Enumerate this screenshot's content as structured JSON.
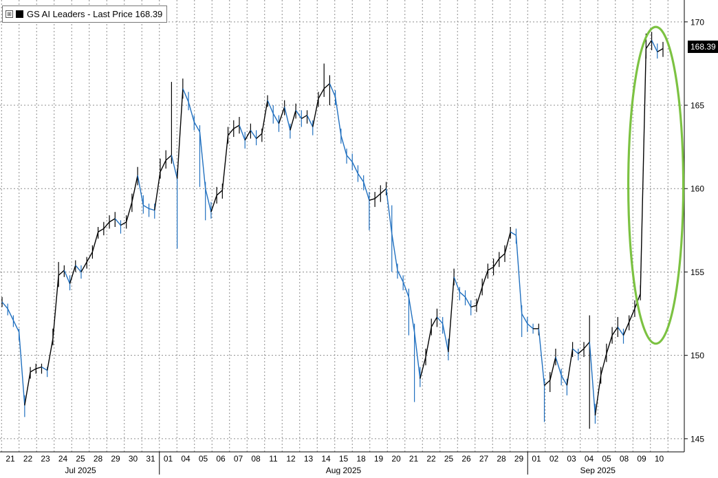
{
  "legend": {
    "label": "GS AI Leaders - Last Price 168.39",
    "toggle": "⊞"
  },
  "last_price_tag": "168.39",
  "colors": {
    "up": "#000000",
    "down": "#1f6fbf",
    "highlight": "#7cc242",
    "grid": "#8c8c8c"
  },
  "chart_data": {
    "type": "line",
    "y_ticks": [
      145,
      150,
      155,
      160,
      165,
      170
    ],
    "ylim": [
      144.5,
      170.9
    ],
    "x_day_labels": [
      "21",
      "22",
      "23",
      "24",
      "25",
      "28",
      "29",
      "30",
      "31",
      "01",
      "04",
      "05",
      "06",
      "07",
      "08",
      "11",
      "12",
      "13",
      "14",
      "15",
      "18",
      "19",
      "20",
      "21",
      "22",
      "25",
      "26",
      "27",
      "28",
      "29",
      "01",
      "02",
      "03",
      "04",
      "05",
      "08",
      "09",
      "10"
    ],
    "month_labels": [
      {
        "label": "Jul 2025",
        "start_index": 0,
        "end_index": 8
      },
      {
        "label": "Aug 2025",
        "start_index": 9,
        "end_index": 29
      },
      {
        "label": "Sep 2025",
        "start_index": 30,
        "end_index": 37
      }
    ],
    "series": [
      {
        "name": "GS AI Leaders",
        "values": [
          153.2,
          152.8,
          152.1,
          151.4,
          147.0,
          149.0,
          149.2,
          149.3,
          149.1,
          151.0,
          154.8,
          155.1,
          154.3,
          155.4,
          155.0,
          155.6,
          156.2,
          157.4,
          157.6,
          158.0,
          158.2,
          157.8,
          158.0,
          159.2,
          160.8,
          159.0,
          158.8,
          158.7,
          161.0,
          161.7,
          162.0,
          160.6,
          166.0,
          165.2,
          164.0,
          163.4,
          160.0,
          158.6,
          159.6,
          159.9,
          163.2,
          163.6,
          163.8,
          162.9,
          163.5,
          163.0,
          163.3,
          165.3,
          164.5,
          163.9,
          164.9,
          163.5,
          164.7,
          164.2,
          164.4,
          163.7,
          165.4,
          166.0,
          166.3,
          165.5,
          163.2,
          162.0,
          161.6,
          160.9,
          160.4,
          159.3,
          159.4,
          159.7,
          160.0,
          157.3,
          155.1,
          154.4,
          153.5,
          151.4,
          148.6,
          149.9,
          151.7,
          152.3,
          151.9,
          150.2,
          154.7,
          153.8,
          153.5,
          152.9,
          153.0,
          154.1,
          155.1,
          155.3,
          155.8,
          156.1,
          157.4,
          157.2,
          152.5,
          151.9,
          151.6,
          151.6,
          148.2,
          148.5,
          149.9,
          148.8,
          148.2,
          150.4,
          150.1,
          150.4,
          150.8,
          146.4,
          148.8,
          150.1,
          151.2,
          151.7,
          151.2,
          152.0,
          152.8,
          153.7,
          168.4,
          168.9,
          168.2,
          168.4
        ],
        "highs": [
          153.5,
          153.1,
          152.4,
          151.6,
          147.6,
          149.3,
          149.5,
          149.5,
          149.3,
          151.6,
          155.6,
          155.4,
          154.8,
          155.7,
          155.4,
          155.9,
          156.6,
          157.7,
          158.0,
          158.4,
          158.6,
          158.1,
          158.4,
          159.7,
          161.3,
          159.6,
          159.1,
          159.1,
          161.8,
          162.3,
          166.4,
          161.1,
          166.6,
          165.8,
          164.4,
          163.8,
          160.4,
          159.2,
          160.1,
          160.3,
          163.7,
          164.1,
          164.3,
          163.4,
          163.9,
          163.5,
          163.6,
          165.6,
          165.0,
          164.4,
          165.3,
          163.9,
          165.1,
          164.7,
          164.7,
          164.1,
          165.8,
          167.5,
          166.8,
          165.9,
          163.6,
          162.4,
          162.1,
          161.4,
          160.8,
          159.8,
          159.8,
          160.2,
          160.4,
          159.0,
          155.5,
          154.8,
          154.0,
          151.9,
          149.3,
          150.4,
          152.2,
          152.8,
          152.3,
          151.0,
          155.2,
          154.1,
          153.9,
          153.3,
          153.4,
          154.6,
          155.5,
          155.8,
          156.2,
          156.6,
          157.7,
          157.6,
          153.0,
          152.3,
          151.9,
          151.9,
          148.6,
          149.0,
          150.4,
          149.2,
          148.6,
          150.8,
          150.4,
          150.8,
          152.4,
          147.1,
          149.3,
          150.7,
          151.7,
          152.3,
          151.6,
          152.4,
          153.3,
          154.2,
          169.3,
          169.4,
          168.7,
          168.8
        ],
        "lows": [
          152.9,
          152.4,
          151.7,
          150.9,
          146.3,
          148.6,
          148.9,
          148.9,
          148.7,
          150.6,
          154.1,
          154.7,
          153.9,
          155.0,
          154.6,
          155.2,
          155.8,
          157.0,
          157.2,
          157.6,
          157.7,
          157.3,
          157.6,
          158.6,
          160.2,
          158.5,
          158.3,
          158.2,
          160.6,
          161.2,
          161.5,
          156.4,
          165.4,
          164.7,
          163.5,
          160.1,
          158.1,
          158.2,
          159.1,
          159.4,
          162.7,
          163.1,
          163.3,
          162.4,
          163.0,
          162.6,
          162.8,
          164.9,
          163.9,
          163.4,
          164.4,
          163.0,
          164.2,
          163.7,
          163.9,
          163.2,
          164.9,
          165.5,
          165.0,
          165.0,
          162.7,
          161.5,
          161.1,
          160.4,
          159.9,
          157.5,
          158.9,
          159.2,
          159.6,
          155.0,
          154.6,
          153.9,
          151.2,
          147.2,
          148.1,
          149.4,
          151.2,
          151.7,
          151.3,
          149.7,
          154.2,
          153.3,
          153.0,
          152.4,
          152.6,
          153.6,
          154.6,
          154.8,
          155.3,
          155.6,
          157.0,
          156.7,
          151.1,
          151.4,
          151.3,
          151.2,
          146.0,
          147.8,
          149.4,
          148.2,
          147.6,
          149.9,
          149.7,
          149.9,
          145.6,
          145.9,
          148.3,
          149.6,
          150.7,
          151.1,
          150.7,
          151.5,
          152.3,
          153.3,
          167.8,
          168.3,
          167.8,
          167.9
        ]
      }
    ],
    "annotations": [
      {
        "type": "ellipse",
        "label": ""
      }
    ]
  }
}
